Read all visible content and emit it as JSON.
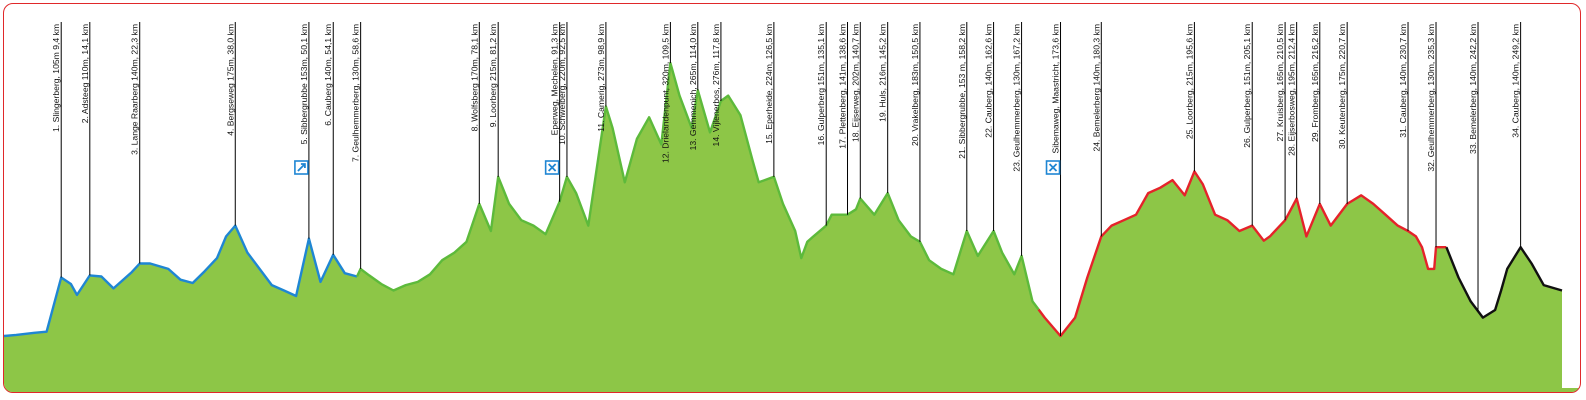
{
  "colors": {
    "fill": "#8dc647",
    "segments": [
      "#1f86d3",
      "#5dba3b",
      "#e5232a",
      "#111111"
    ],
    "frame": "#e0282a",
    "icon": "#1f86d3"
  },
  "chart_data": {
    "type": "area",
    "title": "",
    "xlabel": "",
    "ylabel": "",
    "x_unit": "km",
    "xlim": [
      0,
      256
    ],
    "ylim": [
      0,
      350
    ],
    "segments": [
      {
        "from_km": 0,
        "to_km": 58,
        "color_index": 0
      },
      {
        "from_km": 58,
        "to_km": 170,
        "color_index": 1
      },
      {
        "from_km": 170,
        "to_km": 237,
        "color_index": 2
      },
      {
        "from_km": 237,
        "to_km": 256,
        "color_index": 3
      }
    ],
    "profile": [
      [
        0,
        48
      ],
      [
        2,
        49
      ],
      [
        5,
        51
      ],
      [
        7,
        52
      ],
      [
        9.4,
        102
      ],
      [
        11,
        96
      ],
      [
        12,
        86
      ],
      [
        14.1,
        104
      ],
      [
        16,
        103
      ],
      [
        18,
        92
      ],
      [
        21,
        107
      ],
      [
        22.3,
        115
      ],
      [
        24,
        115
      ],
      [
        27,
        110
      ],
      [
        29,
        100
      ],
      [
        31,
        97
      ],
      [
        33,
        108
      ],
      [
        35,
        120
      ],
      [
        36.5,
        140
      ],
      [
        38,
        150
      ],
      [
        40,
        125
      ],
      [
        42,
        110
      ],
      [
        44,
        95
      ],
      [
        46,
        90
      ],
      [
        48,
        85
      ],
      [
        50.1,
        138
      ],
      [
        52,
        98
      ],
      [
        54.1,
        123
      ],
      [
        56,
        106
      ],
      [
        58,
        103
      ],
      [
        58.6,
        110
      ],
      [
        60,
        104
      ],
      [
        62,
        96
      ],
      [
        64,
        90
      ],
      [
        66,
        95
      ],
      [
        68,
        98
      ],
      [
        70,
        105
      ],
      [
        72,
        118
      ],
      [
        74,
        125
      ],
      [
        76,
        135
      ],
      [
        78.1,
        170
      ],
      [
        80,
        145
      ],
      [
        81.2,
        195
      ],
      [
        83,
        170
      ],
      [
        85,
        155
      ],
      [
        87,
        150
      ],
      [
        89,
        142
      ],
      [
        91.3,
        172
      ],
      [
        92.5,
        195
      ],
      [
        94,
        180
      ],
      [
        96,
        150
      ],
      [
        98.9,
        260
      ],
      [
        100,
        240
      ],
      [
        102,
        190
      ],
      [
        104,
        230
      ],
      [
        106,
        250
      ],
      [
        108,
        225
      ],
      [
        109.5,
        300
      ],
      [
        111,
        270
      ],
      [
        113,
        240
      ],
      [
        114,
        275
      ],
      [
        116,
        236
      ],
      [
        117.8,
        265
      ],
      [
        119,
        270
      ],
      [
        121,
        252
      ],
      [
        123,
        210
      ],
      [
        124,
        190
      ],
      [
        126.5,
        195
      ],
      [
        128,
        170
      ],
      [
        130,
        145
      ],
      [
        131,
        120
      ],
      [
        132,
        135
      ],
      [
        133,
        140
      ],
      [
        135.1,
        150
      ],
      [
        136,
        160
      ],
      [
        138.6,
        160
      ],
      [
        140,
        165
      ],
      [
        140.7,
        175
      ],
      [
        143,
        160
      ],
      [
        145.2,
        180
      ],
      [
        147,
        155
      ],
      [
        149,
        140
      ],
      [
        150.5,
        135
      ],
      [
        152,
        118
      ],
      [
        154,
        110
      ],
      [
        156,
        105
      ],
      [
        158.2,
        145
      ],
      [
        160,
        122
      ],
      [
        162.6,
        145
      ],
      [
        164,
        125
      ],
      [
        166,
        105
      ],
      [
        167.2,
        122
      ],
      [
        169,
        80
      ],
      [
        171,
        65
      ],
      [
        173.6,
        48
      ],
      [
        176,
        65
      ],
      [
        178,
        102
      ],
      [
        180.3,
        140
      ],
      [
        182,
        150
      ],
      [
        184,
        155
      ],
      [
        186,
        160
      ],
      [
        188,
        180
      ],
      [
        190,
        185
      ],
      [
        192,
        192
      ],
      [
        194,
        178
      ],
      [
        195.6,
        200
      ],
      [
        197,
        188
      ],
      [
        199,
        160
      ],
      [
        201,
        155
      ],
      [
        203,
        145
      ],
      [
        205.1,
        150
      ],
      [
        207,
        136
      ],
      [
        208,
        140
      ],
      [
        210.5,
        155
      ],
      [
        211,
        160
      ],
      [
        212.4,
        175
      ],
      [
        214,
        140
      ],
      [
        216.2,
        170
      ],
      [
        218,
        150
      ],
      [
        220.7,
        170
      ],
      [
        223,
        178
      ],
      [
        225,
        170
      ],
      [
        227,
        160
      ],
      [
        229,
        150
      ],
      [
        230.7,
        145
      ],
      [
        232,
        140
      ],
      [
        233,
        130
      ],
      [
        234,
        110
      ],
      [
        235,
        110
      ],
      [
        235.3,
        130
      ],
      [
        237,
        130
      ],
      [
        239,
        102
      ],
      [
        241,
        80
      ],
      [
        243,
        65
      ],
      [
        245,
        72
      ],
      [
        246,
        90
      ],
      [
        247,
        110
      ],
      [
        249.2,
        130
      ],
      [
        251,
        115
      ],
      [
        253,
        95
      ],
      [
        256,
        90
      ]
    ],
    "annotations": [
      {
        "km": 9.4,
        "label": "1. Slingerberg, 105m 9,4 km"
      },
      {
        "km": 14.1,
        "label": "2. Adsteeg 110m, 14,1 km"
      },
      {
        "km": 22.3,
        "label": "3. Lange Raarberg 140m, 22,3 km"
      },
      {
        "km": 38.0,
        "label": "4. Bergseweg 175m, 38,0 km"
      },
      {
        "km": 50.1,
        "label": "5. Sibbergrubbe 153m, 50,1 km"
      },
      {
        "km": 54.1,
        "label": "6. Cauberg 140m, 54,1 km"
      },
      {
        "km": 58.6,
        "label": "7. Geulhemmerberg, 130m, 58,6 km"
      },
      {
        "km": 78.1,
        "label": "8. Wolfsberg 170m, 78,1 km"
      },
      {
        "km": 81.2,
        "label": "9. Loorberg 215m, 81,2 km"
      },
      {
        "km": 91.3,
        "label": "Eperweg, Mechelen, 91,3 km"
      },
      {
        "km": 92.5,
        "label": "10. Schweiberg, 220m, 92,5 km"
      },
      {
        "km": 98.9,
        "label": "11. Camerig, 273m, 98,9 km"
      },
      {
        "km": 109.5,
        "label": "12. Drielandenpunt, 320m, 109,5 km"
      },
      {
        "km": 114.0,
        "label": "13. Gemmenich, 265m, 114,0 km"
      },
      {
        "km": 117.8,
        "label": "14. Vijlenerbos, 276m, 117,8 km"
      },
      {
        "km": 126.5,
        "label": "15. Eperheide, 224m, 126,5 km"
      },
      {
        "km": 135.1,
        "label": "16. Gulperberg 151m, 135,1 km"
      },
      {
        "km": 138.6,
        "label": "17. Plettenberg, 141m, 138,6 km"
      },
      {
        "km": 140.7,
        "label": "18. Eijserweg, 202m, 140,7 km"
      },
      {
        "km": 145.2,
        "label": "19. Huls, 216m, 145,2 km"
      },
      {
        "km": 150.5,
        "label": "20. Vrakelberg, 183m, 150,5 km"
      },
      {
        "km": 158.2,
        "label": "21. Sibbergrubbe, 153 m, 158,2 km"
      },
      {
        "km": 162.6,
        "label": "22. Cauberg, 140m, 162,6 km"
      },
      {
        "km": 167.2,
        "label": "23. Geulhemmerberg, 130m, 167,2 km"
      },
      {
        "km": 173.6,
        "label": "Sibemaweg, Maastricht, 173,6 km"
      },
      {
        "km": 180.3,
        "label": "24. Bemelerberg 140m, 180,3 km"
      },
      {
        "km": 195.6,
        "label": "25. Loorberg, 215m, 195,6 km"
      },
      {
        "km": 205.1,
        "label": "26. Gulperberg, 151m, 205,1 km"
      },
      {
        "km": 210.5,
        "label": "27. Kruisberg, 165m, 210,5 km"
      },
      {
        "km": 212.4,
        "label": "28. Eijserbosweg, 195m, 212,4 km"
      },
      {
        "km": 216.2,
        "label": "29. Fromberg, 165m, 216,2 km"
      },
      {
        "km": 220.7,
        "label": "30. Keutenberg, 175m, 220,7 km"
      },
      {
        "km": 230.7,
        "label": "31. Cauberg, 140m, 230,7 km"
      },
      {
        "km": 235.3,
        "label": "32. Geulhemmerberg, 130m, 235,3 km"
      },
      {
        "km": 242.2,
        "label": "33. Bemelerberg, 140m, 242,2 km"
      },
      {
        "km": 249.2,
        "label": "34. Cauberg, 140m, 249,2 km"
      }
    ],
    "icons": [
      {
        "km": 50.1,
        "name": "feed-zone-icon"
      },
      {
        "km": 91.3,
        "name": "sprint-icon"
      },
      {
        "km": 173.6,
        "name": "sprint-icon"
      }
    ]
  }
}
